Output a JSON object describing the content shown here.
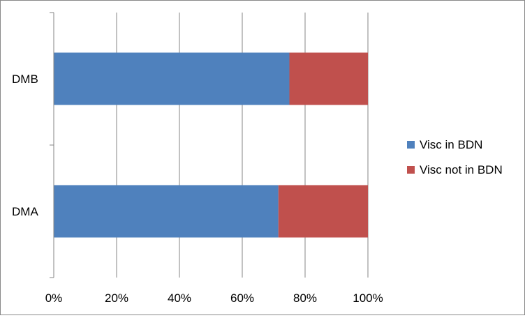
{
  "chart_data": {
    "type": "bar",
    "orientation": "horizontal",
    "stacked": "percent",
    "categories": [
      "DMB",
      "DMA"
    ],
    "series": [
      {
        "name": "Visc in BDN",
        "values": [
          75,
          71.5
        ],
        "color": "#4f81bd"
      },
      {
        "name": "Visc not in BDN",
        "values": [
          25,
          28.5
        ],
        "color": "#c0504d"
      }
    ],
    "x_ticks": [
      "0%",
      "20%",
      "40%",
      "60%",
      "80%",
      "100%"
    ],
    "xlim": [
      0,
      100
    ],
    "grid": "vertical",
    "legend": "right",
    "title": "",
    "xlabel": "",
    "ylabel": ""
  }
}
